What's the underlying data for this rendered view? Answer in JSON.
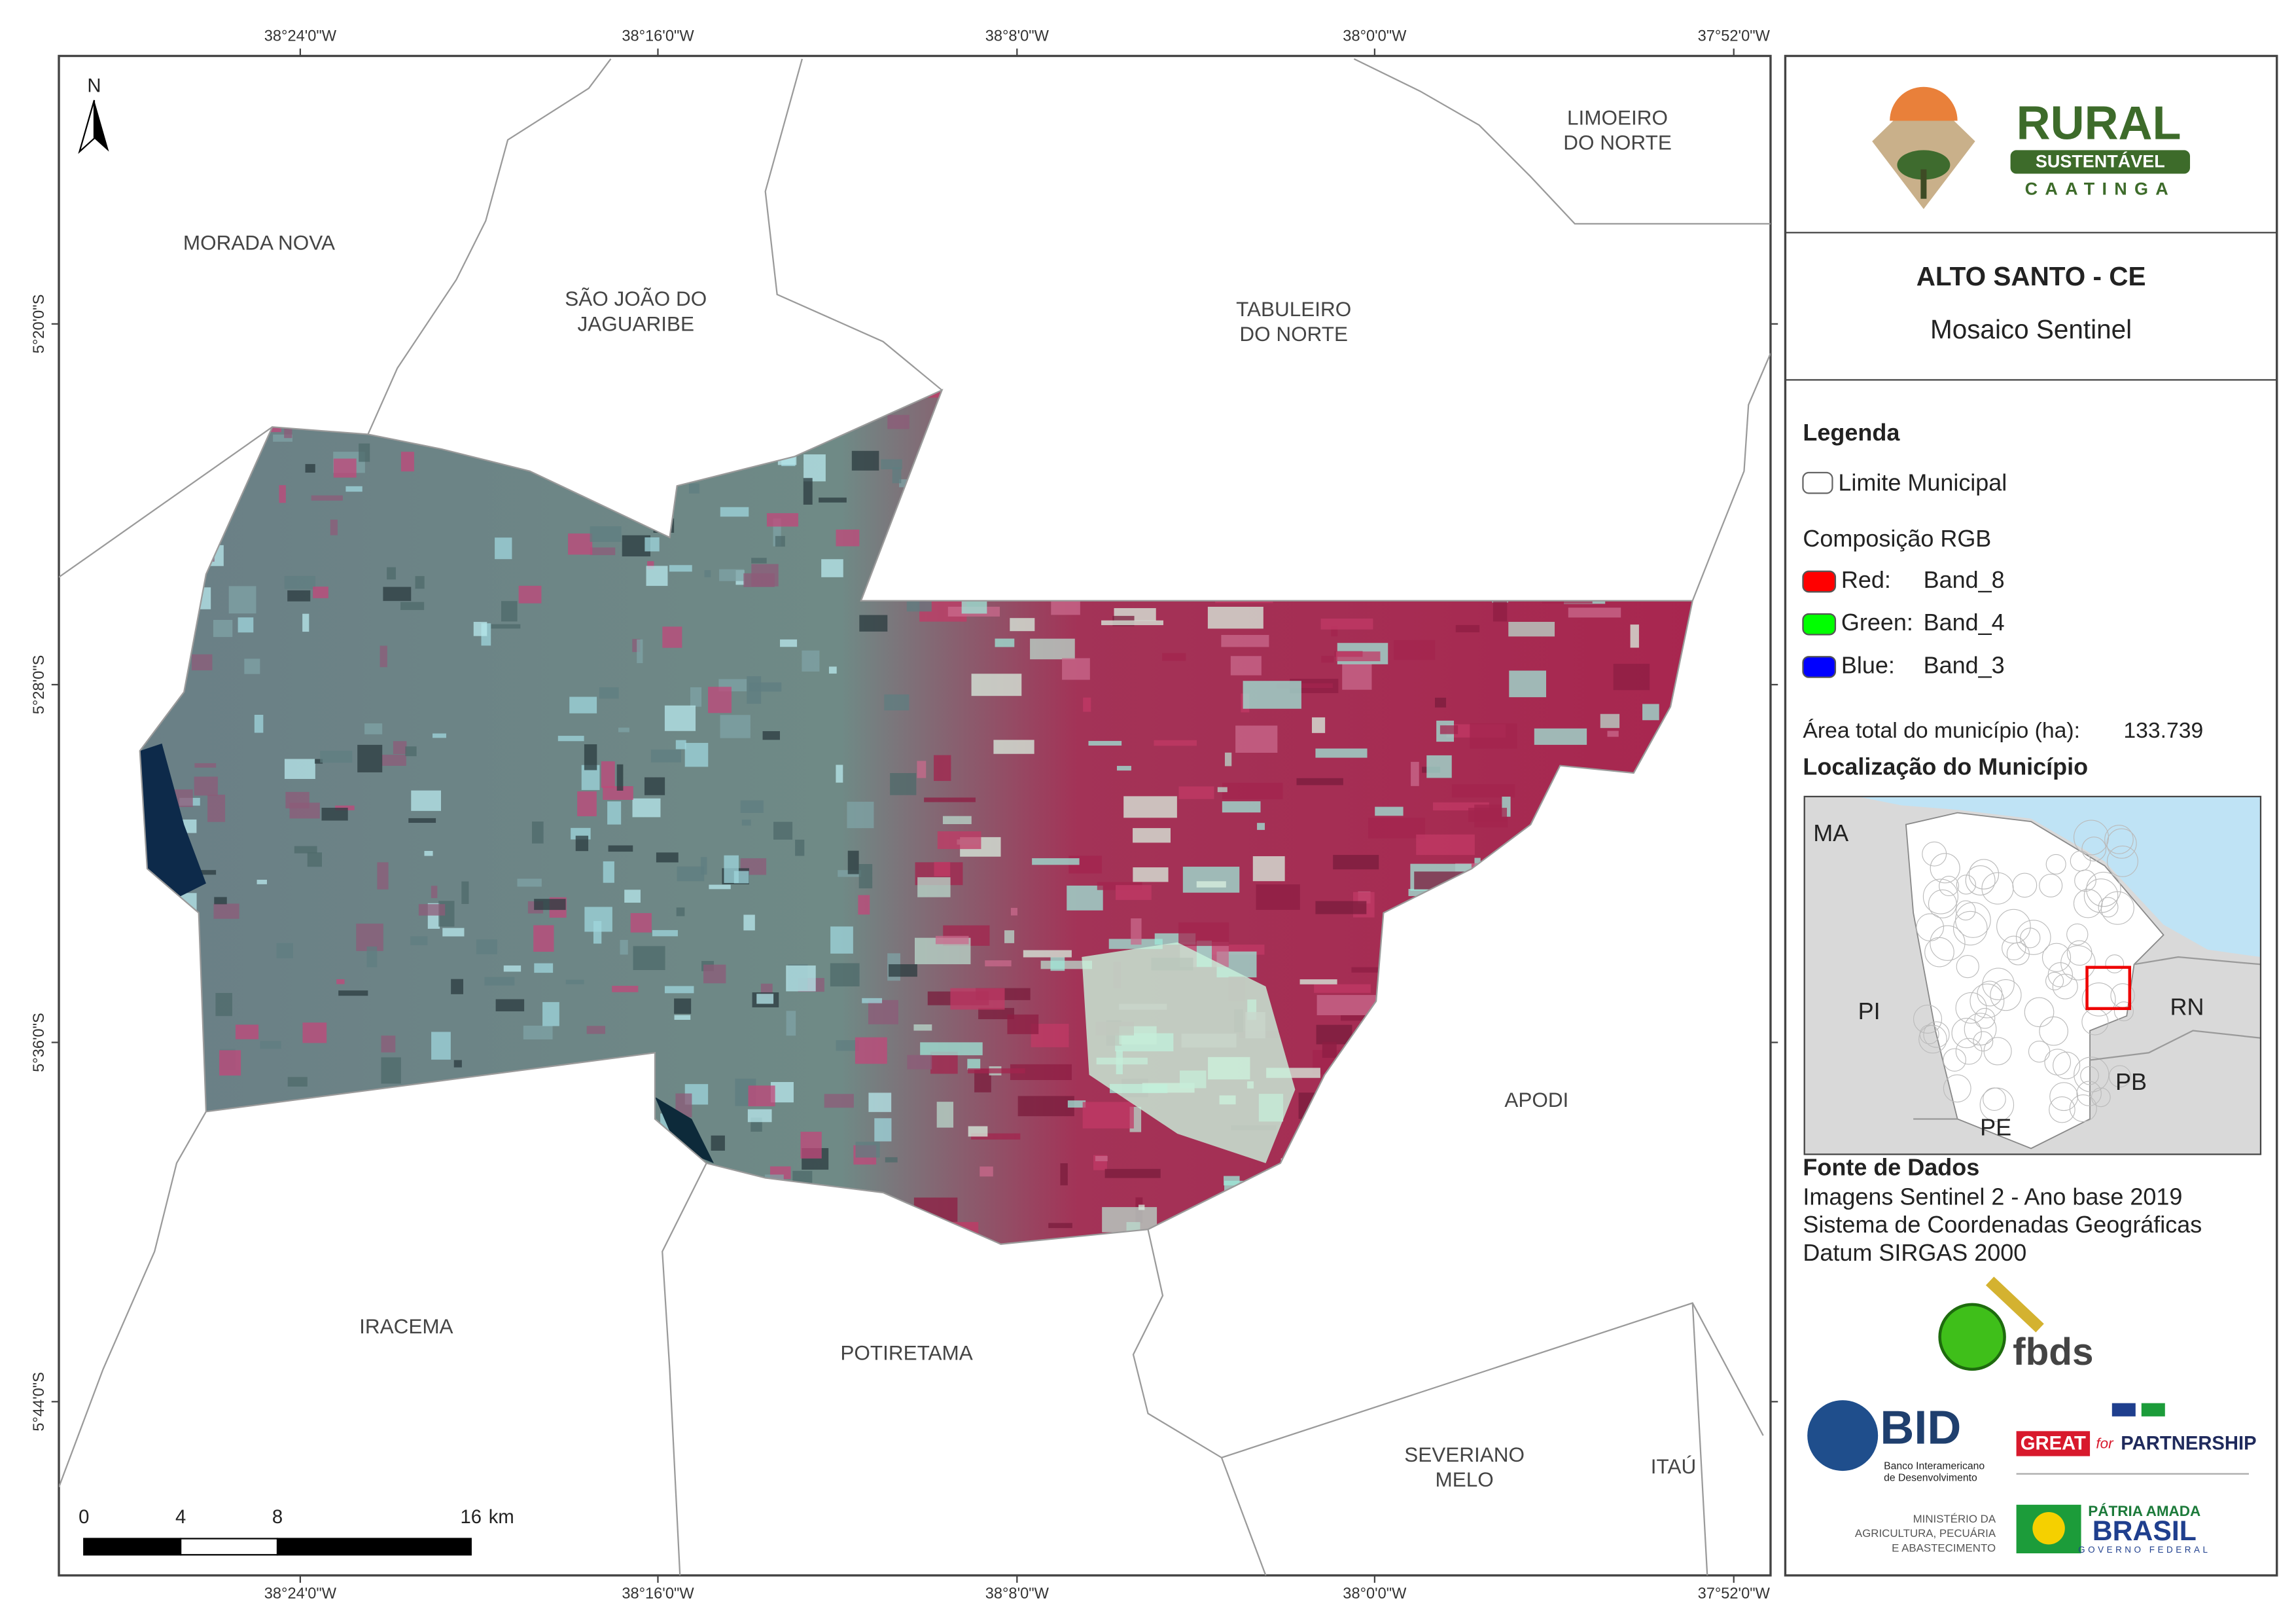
{
  "map": {
    "north": "N",
    "lon_ticks": [
      "38°24'0\"W",
      "38°16'0\"W",
      "38°8'0\"W",
      "38°0'0\"W",
      "37°52'0\"W"
    ],
    "lat_ticks": [
      "5°20'0\"S",
      "5°28'0\"S",
      "5°36'0\"S",
      "5°44'0\"S"
    ],
    "municipalities": [
      {
        "lines": [
          "MORADA NOVA"
        ]
      },
      {
        "lines": [
          "SÃO JOÃO DO",
          "JAGUARIBE"
        ]
      },
      {
        "lines": [
          "TABULEIRO",
          "DO NORTE"
        ]
      },
      {
        "lines": [
          "LIMOEIRO",
          "DO NORTE"
        ]
      },
      {
        "lines": [
          "APODI"
        ]
      },
      {
        "lines": [
          "IRACEMA"
        ]
      },
      {
        "lines": [
          "POTIRETAMA"
        ]
      },
      {
        "lines": [
          "SEVERIANO",
          "MELO"
        ]
      },
      {
        "lines": [
          "ITAÚ"
        ]
      }
    ],
    "scale": {
      "ticks": [
        0,
        4,
        8,
        16
      ],
      "unit": "km"
    }
  },
  "panel": {
    "logo": {
      "title": "RURAL",
      "band": "SUSTENTÁVEL",
      "sub": "CAATINGA"
    },
    "title": "ALTO SANTO - CE",
    "subtitle": "Mosaico Sentinel",
    "legend": {
      "heading": "Legenda",
      "boundary": "Limite Municipal",
      "rgb_heading": "Composição RGB",
      "bands": [
        {
          "label": "Red:",
          "band": "Band_8",
          "color": "#ff0000"
        },
        {
          "label": "Green:",
          "band": "Band_4",
          "color": "#00ff00"
        },
        {
          "label": "Blue:",
          "band": "Band_3",
          "color": "#0000ff"
        }
      ]
    },
    "area_label": "Área total do município (ha):",
    "area_value": "133.739",
    "location_heading": "Localização do Município",
    "inset_labels": [
      "MA",
      "PI",
      "RN",
      "PB",
      "PE"
    ],
    "sources_heading": "Fonte de Dados",
    "sources": [
      "Imagens Sentinel 2 - Ano base 2019",
      "Sistema de Coordenadas Geográficas",
      "Datum SIRGAS 2000"
    ],
    "logos": {
      "fbds": "fbds",
      "bid": "BID",
      "bid_name": [
        "Banco Interamericano",
        "de Desenvolvimento"
      ],
      "great": "GREAT",
      "for": "for",
      "partnership": "PARTNERSHIP",
      "ministry": [
        "MINISTÉRIO DA",
        "AGRICULTURA, PECUÁRIA",
        "E ABASTECIMENTO"
      ],
      "patria": "PÁTRIA AMADA",
      "brasil": "BRASIL",
      "gov": "GOVERNO FEDERAL"
    }
  }
}
